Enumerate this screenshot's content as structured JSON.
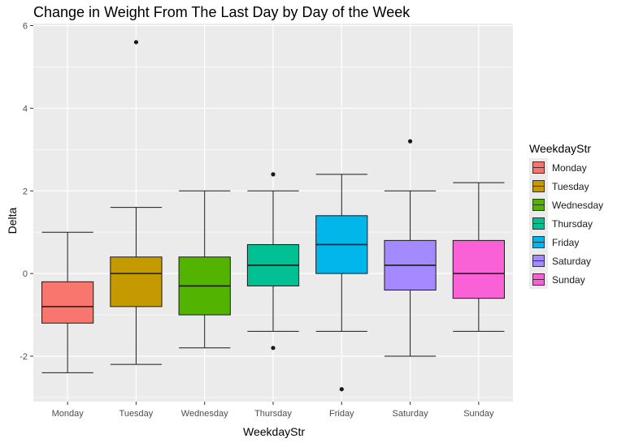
{
  "chart_data": {
    "type": "box",
    "title": "Change in Weight From The Last Day by Day of the Week",
    "xlabel": "WeekdayStr",
    "ylabel": "Delta",
    "ylim": [
      -3.1,
      6.05
    ],
    "yticks": [
      -2,
      0,
      2,
      4,
      6
    ],
    "categories": [
      "Monday",
      "Tuesday",
      "Wednesday",
      "Thursday",
      "Friday",
      "Saturday",
      "Sunday"
    ],
    "boxes": [
      {
        "category": "Monday",
        "whisker_low": -2.4,
        "q1": -1.2,
        "median": -0.8,
        "q3": -0.2,
        "whisker_high": 1.0,
        "outliers": [],
        "color": "#F8766D"
      },
      {
        "category": "Tuesday",
        "whisker_low": -2.2,
        "q1": -0.8,
        "median": 0.0,
        "q3": 0.4,
        "whisker_high": 1.6,
        "outliers": [
          5.6
        ],
        "color": "#C49A00"
      },
      {
        "category": "Wednesday",
        "whisker_low": -1.8,
        "q1": -1.0,
        "median": -0.3,
        "q3": 0.4,
        "whisker_high": 2.0,
        "outliers": [],
        "color": "#53B400"
      },
      {
        "category": "Thursday",
        "whisker_low": -1.4,
        "q1": -0.3,
        "median": 0.2,
        "q3": 0.7,
        "whisker_high": 2.0,
        "outliers": [
          2.4,
          -1.8
        ],
        "color": "#00C094"
      },
      {
        "category": "Friday",
        "whisker_low": -1.4,
        "q1": 0.0,
        "median": 0.7,
        "q3": 1.4,
        "whisker_high": 2.4,
        "outliers": [
          -2.8
        ],
        "color": "#00B6EB"
      },
      {
        "category": "Saturday",
        "whisker_low": -2.0,
        "q1": -0.4,
        "median": 0.2,
        "q3": 0.8,
        "whisker_high": 2.0,
        "outliers": [
          3.2
        ],
        "color": "#A58AFF"
      },
      {
        "category": "Sunday",
        "whisker_low": -1.4,
        "q1": -0.6,
        "median": 0.0,
        "q3": 0.8,
        "whisker_high": 2.2,
        "outliers": [],
        "color": "#FB61D7"
      }
    ],
    "legend": {
      "title": "WeekdayStr",
      "position": "right"
    },
    "grid": true,
    "panel_background": "#ebebeb"
  }
}
